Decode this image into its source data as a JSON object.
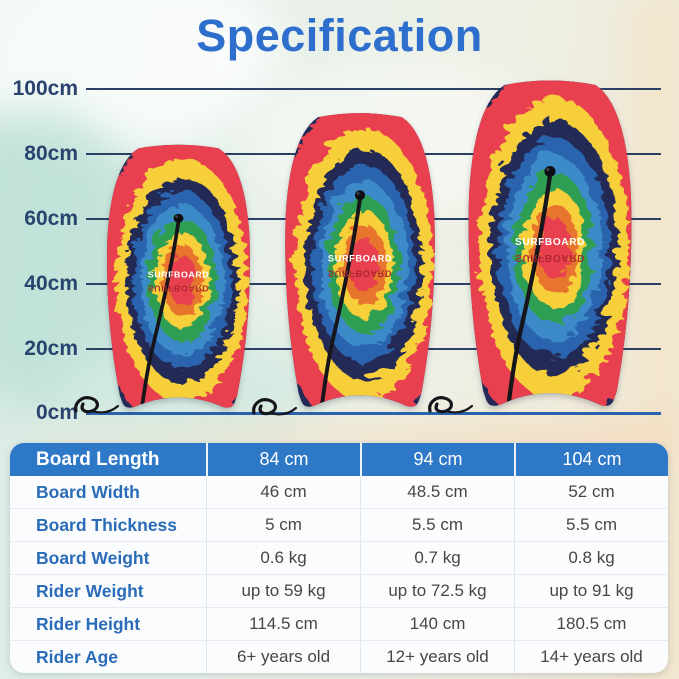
{
  "title": "Specification",
  "ruler": {
    "labels": [
      "100cm",
      "80cm",
      "60cm",
      "40cm",
      "20cm",
      "0cm"
    ]
  },
  "board": {
    "brand": "SURFBOARD"
  },
  "table": {
    "header": {
      "label": "Board Length",
      "values": [
        "84 cm",
        "94 cm",
        "104 cm"
      ]
    },
    "rows": [
      {
        "label": "Board Width",
        "values": [
          "46 cm",
          "48.5 cm",
          "52 cm"
        ]
      },
      {
        "label": "Board Thickness",
        "values": [
          "5 cm",
          "5.5 cm",
          "5.5 cm"
        ]
      },
      {
        "label": "Board Weight",
        "values": [
          "0.6 kg",
          "0.7 kg",
          "0.8 kg"
        ]
      },
      {
        "label": "Rider Weight",
        "values": [
          "up to 59 kg",
          "up to 72.5 kg",
          "up to 91 kg"
        ]
      },
      {
        "label": "Rider Height",
        "values": [
          "114.5 cm",
          "140 cm",
          "180.5 cm"
        ]
      },
      {
        "label": "Rider Age",
        "values": [
          "6+ years old",
          "12+ years old",
          "14+ years old"
        ]
      }
    ]
  },
  "palette": {
    "title_blue": "#2e6fce",
    "header_blue": "#2e78c8",
    "label_blue": "#2b6cb8",
    "ruler_navy": "#2c4066",
    "ruler_text": "#29436e",
    "ground_blue": "#2a62ac",
    "board_rail": "#232a55",
    "rings": [
      "#e8404f",
      "#f7cf3a",
      "#232a55",
      "#2c63ae",
      "#3e8ac8",
      "#2f9e53",
      "#f7cf3a",
      "#e8742f",
      "#e8404f"
    ],
    "brand_text": "#ffffff",
    "brand_mirror": "#a8242f",
    "leash": "#15151b"
  }
}
